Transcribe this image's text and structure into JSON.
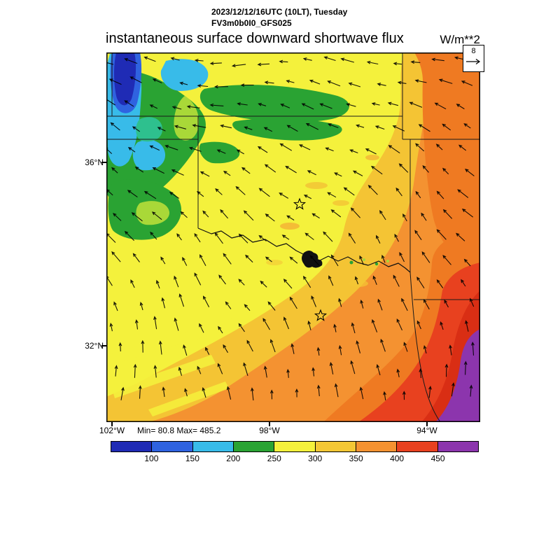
{
  "header": {
    "datetime": "2023/12/12/16UTC (10LT), Tuesday",
    "model": "FV3m0b0I0_GFS025",
    "title": "instantaneous surface downward shortwave flux",
    "units": "W/m**2"
  },
  "reference_vector": {
    "label": "8"
  },
  "stats": {
    "minmax": "Min= 80.8 Max= 485.2"
  },
  "axes": {
    "lat": [
      {
        "text": "36°N"
      },
      {
        "text": "32°N"
      }
    ],
    "lon": [
      {
        "text": "102°W"
      },
      {
        "text": "98°W"
      },
      {
        "text": "94°W"
      }
    ]
  },
  "chart_data": {
    "type": "heatmap",
    "title": "instantaneous surface downward shortwave flux",
    "units": "W/m**2",
    "valid_time": "2023/12/12/16UTC (10LT), Tuesday",
    "model": "FV3m0b0I0_GFS025",
    "min_value": 80.8,
    "max_value": 485.2,
    "contour_levels": [
      100,
      150,
      200,
      250,
      300,
      350,
      400,
      450
    ],
    "palette": [
      "#1f2bb5",
      "#2f63e0",
      "#38bbe9",
      "#2aa333",
      "#f4f13c",
      "#f3c735",
      "#f49231",
      "#e8411f",
      "#8c35ad"
    ],
    "lat_ticks": [
      "36°N",
      "32°N"
    ],
    "lon_ticks": [
      "102°W",
      "98°W",
      "94°W"
    ],
    "lat_range_deg_n": [
      30.3,
      38.4
    ],
    "lon_range_deg_w": [
      102.2,
      92.7
    ],
    "wind_reference": 8,
    "overlays": [
      "wind vectors",
      "state borders",
      "Red River",
      "star city markers"
    ],
    "pattern": "low flux (80-250 W/m**2, blue/green) northwest corner; mid flux (250-350, yellow) center-north; high flux (350-485, orange/red/purple) southeast"
  }
}
